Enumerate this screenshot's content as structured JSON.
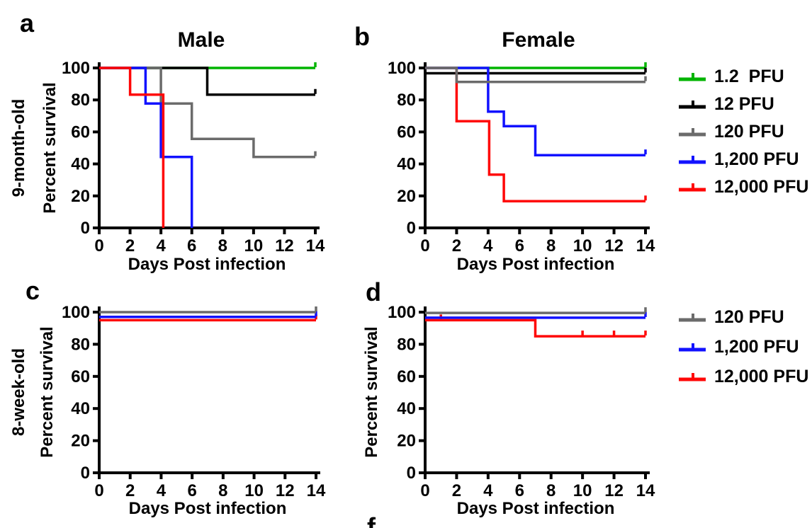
{
  "colors": {
    "green": "#00b400",
    "black": "#000000",
    "gray": "#6b6b6b",
    "blue": "#1212ff",
    "red": "#ff0707"
  },
  "partial_label": "f",
  "chart_data": [
    {
      "id": "a",
      "panel_label": "a",
      "title": "Male",
      "row_label": "9-month-old",
      "xlabel": "Days Post infection",
      "ylabel": "Percent survival",
      "type": "line",
      "step": true,
      "xlim": [
        0,
        14
      ],
      "ylim": [
        0,
        100
      ],
      "xticks": [
        0,
        2,
        4,
        6,
        8,
        10,
        12,
        14
      ],
      "yticks": [
        0,
        20,
        40,
        60,
        80,
        100
      ],
      "grid": false,
      "series": [
        {
          "name": "1.2 PFU",
          "color": "green",
          "points": [
            [
              0,
              100
            ],
            [
              14,
              100
            ]
          ],
          "censors": [
            [
              14,
              100
            ]
          ]
        },
        {
          "name": "12 PFU",
          "color": "black",
          "points": [
            [
              0,
              100
            ],
            [
              7,
              100
            ],
            [
              7,
              83.3
            ],
            [
              14,
              83.3
            ]
          ],
          "censors": [
            [
              14,
              83.3
            ]
          ]
        },
        {
          "name": "120 PFU",
          "color": "gray",
          "points": [
            [
              0,
              100
            ],
            [
              4,
              100
            ],
            [
              4,
              77.8
            ],
            [
              6,
              77.8
            ],
            [
              6,
              55.6
            ],
            [
              10,
              55.6
            ],
            [
              10,
              44.4
            ],
            [
              14,
              44.4
            ]
          ],
          "censors": [
            [
              14,
              44.4
            ]
          ]
        },
        {
          "name": "1,200 PFU",
          "color": "blue",
          "points": [
            [
              0,
              100
            ],
            [
              3,
              100
            ],
            [
              3,
              77.8
            ],
            [
              4,
              77.8
            ],
            [
              4,
              44.4
            ],
            [
              6,
              44.4
            ],
            [
              6,
              0
            ]
          ],
          "censors": []
        },
        {
          "name": "12,000 PFU",
          "color": "red",
          "points": [
            [
              0,
              100
            ],
            [
              2,
              100
            ],
            [
              2,
              83.3
            ],
            [
              4.15,
              83.3
            ],
            [
              4.15,
              0
            ]
          ],
          "censors": []
        }
      ]
    },
    {
      "id": "b",
      "panel_label": "b",
      "title": "Female",
      "row_label": "",
      "xlabel": "Days Post infection",
      "ylabel": "",
      "type": "line",
      "step": true,
      "xlim": [
        0,
        14
      ],
      "ylim": [
        0,
        100
      ],
      "xticks": [
        0,
        2,
        4,
        6,
        8,
        10,
        12,
        14
      ],
      "yticks": [
        0,
        20,
        40,
        60,
        80,
        100
      ],
      "grid": false,
      "series": [
        {
          "name": "1.2 PFU",
          "color": "green",
          "points": [
            [
              0,
              100
            ],
            [
              14,
              100
            ]
          ],
          "censors": [
            [
              14,
              100
            ]
          ]
        },
        {
          "name": "12 PFU",
          "color": "black",
          "points": [
            [
              0,
              96.7
            ],
            [
              14,
              96.7
            ]
          ],
          "censors": [
            [
              14,
              96.7
            ]
          ]
        },
        {
          "name": "12,000 PFU",
          "color": "red",
          "points": [
            [
              0,
              100
            ],
            [
              2,
              100
            ],
            [
              2,
              66.7
            ],
            [
              4.07,
              66.7
            ],
            [
              4.07,
              33.3
            ],
            [
              5,
              33.3
            ],
            [
              5,
              16.7
            ],
            [
              14,
              16.7
            ]
          ],
          "censors": [
            [
              14,
              16.7
            ]
          ]
        },
        {
          "name": "1,200 PFU",
          "color": "blue",
          "points": [
            [
              0,
              100
            ],
            [
              4,
              100
            ],
            [
              4,
              72.7
            ],
            [
              5,
              72.7
            ],
            [
              5,
              63.6
            ],
            [
              7,
              63.6
            ],
            [
              7,
              45.5
            ],
            [
              14,
              45.5
            ]
          ],
          "censors": [
            [
              14,
              45.5
            ]
          ]
        },
        {
          "name": "120 PFU",
          "color": "gray",
          "points": [
            [
              0,
              100
            ],
            [
              2,
              100
            ],
            [
              2,
              91.3
            ],
            [
              14,
              91.3
            ]
          ],
          "censors": [
            [
              14,
              91.3
            ]
          ]
        }
      ]
    },
    {
      "id": "c",
      "panel_label": "c",
      "title": "",
      "row_label": "8-week-old",
      "xlabel": "Days Post infection",
      "ylabel": "Percent survival",
      "type": "line",
      "step": true,
      "xlim": [
        0,
        14
      ],
      "ylim": [
        0,
        100
      ],
      "xticks": [
        0,
        2,
        4,
        6,
        8,
        10,
        12,
        14
      ],
      "yticks": [
        0,
        20,
        40,
        60,
        80,
        100
      ],
      "grid": false,
      "series": [
        {
          "name": "12,000 PFU",
          "color": "red",
          "points": [
            [
              0,
              95
            ],
            [
              14,
              95
            ]
          ],
          "censors": [
            [
              14,
              95
            ]
          ]
        },
        {
          "name": "1,200 PFU",
          "color": "blue",
          "points": [
            [
              0,
              97
            ],
            [
              14,
              97
            ]
          ],
          "censors": [
            [
              14,
              97
            ]
          ]
        },
        {
          "name": "120 PFU",
          "color": "gray",
          "points": [
            [
              0,
              100
            ],
            [
              14,
              100
            ]
          ],
          "censors": [
            [
              14,
              100
            ]
          ]
        }
      ]
    },
    {
      "id": "d",
      "panel_label": "d",
      "title": "",
      "row_label": "",
      "xlabel": "Days Post infection",
      "ylabel": "Percent survival",
      "type": "line",
      "step": true,
      "xlim": [
        0,
        14
      ],
      "ylim": [
        0,
        100
      ],
      "xticks": [
        0,
        2,
        4,
        6,
        8,
        10,
        12,
        14
      ],
      "yticks": [
        0,
        20,
        40,
        60,
        80,
        100
      ],
      "grid": false,
      "series": [
        {
          "name": "12,000 PFU",
          "color": "red",
          "points": [
            [
              0,
              95
            ],
            [
              7,
              95
            ],
            [
              7,
              85
            ],
            [
              14,
              85
            ]
          ],
          "censors": [
            [
              1,
              95
            ],
            [
              10,
              85
            ],
            [
              12,
              85
            ],
            [
              14,
              85
            ]
          ]
        },
        {
          "name": "1,200 PFU",
          "color": "blue",
          "points": [
            [
              0,
              96.5
            ],
            [
              14,
              96.5
            ]
          ],
          "censors": [
            [
              14,
              96.5
            ]
          ]
        },
        {
          "name": "120 PFU",
          "color": "gray",
          "points": [
            [
              0,
              99.5
            ],
            [
              14,
              99.5
            ]
          ],
          "censors": [
            [
              14,
              99.5
            ]
          ]
        }
      ]
    }
  ],
  "legend_top": {
    "items": [
      {
        "label": "1.2  PFU",
        "color": "green"
      },
      {
        "label": "12 PFU",
        "color": "black"
      },
      {
        "label": "120 PFU",
        "color": "gray"
      },
      {
        "label": "1,200 PFU",
        "color": "blue"
      },
      {
        "label": "12,000 PFU",
        "color": "red"
      }
    ]
  },
  "legend_bottom": {
    "items": [
      {
        "label": "120 PFU",
        "color": "gray"
      },
      {
        "label": "1,200 PFU",
        "color": "blue"
      },
      {
        "label": "12,000 PFU",
        "color": "red"
      }
    ]
  }
}
